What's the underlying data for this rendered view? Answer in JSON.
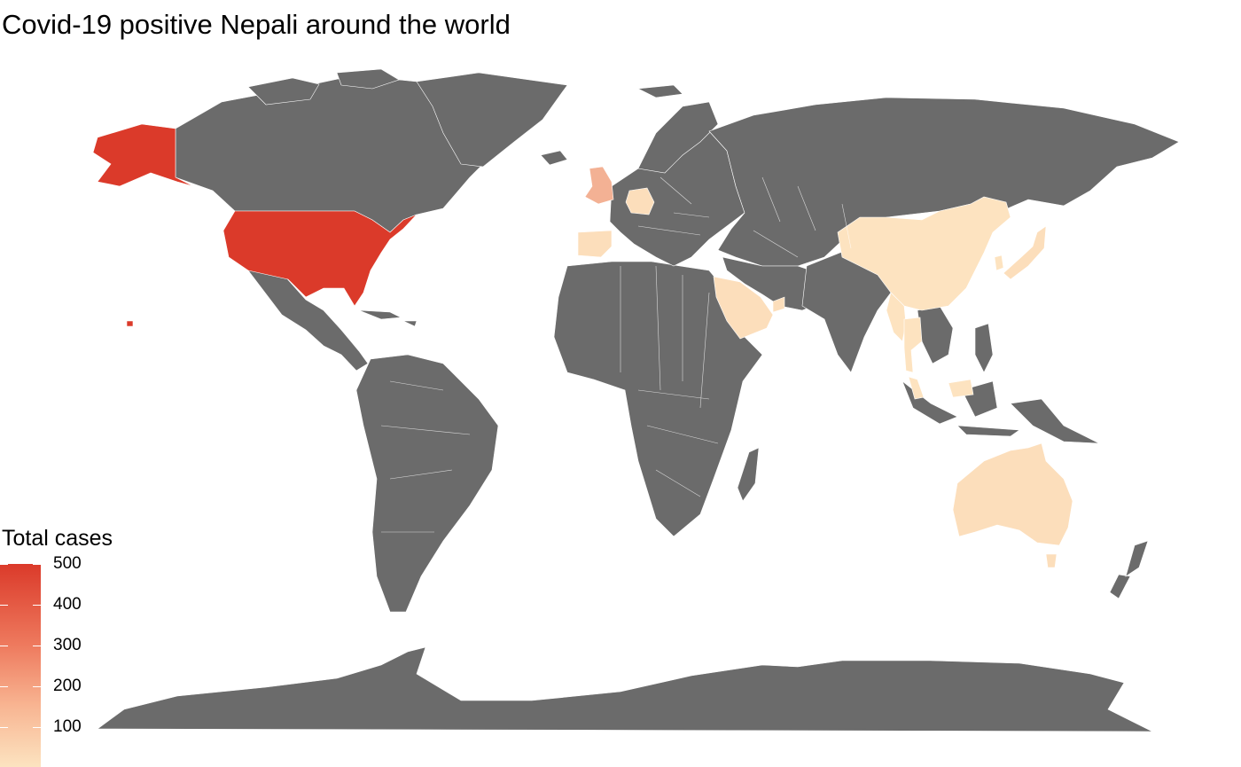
{
  "title": "Covid-19 positive Nepali around the world",
  "legend": {
    "title": "Total cases",
    "ticks": [
      "500",
      "400",
      "300",
      "200",
      "100"
    ],
    "min": 1,
    "max": 500,
    "low_color": "#fde4c1",
    "high_color": "#db3a2a"
  },
  "colors": {
    "no_data": "#6b6b6b",
    "border": "#ffffff",
    "background": "#ffffff"
  },
  "chart_data": {
    "type": "choropleth",
    "regions": [
      {
        "name": "United States",
        "value": 500
      },
      {
        "name": "United Kingdom",
        "value": 150
      },
      {
        "name": "Germany",
        "value": 20
      },
      {
        "name": "Spain",
        "value": 20
      },
      {
        "name": "Saudi Arabia",
        "value": 20
      },
      {
        "name": "United Arab Emirates",
        "value": 20
      },
      {
        "name": "China",
        "value": 5
      },
      {
        "name": "Japan",
        "value": 20
      },
      {
        "name": "South Korea",
        "value": 5
      },
      {
        "name": "Myanmar",
        "value": 5
      },
      {
        "name": "Thailand",
        "value": 5
      },
      {
        "name": "Malaysia",
        "value": 5
      },
      {
        "name": "Australia",
        "value": 20
      }
    ]
  }
}
